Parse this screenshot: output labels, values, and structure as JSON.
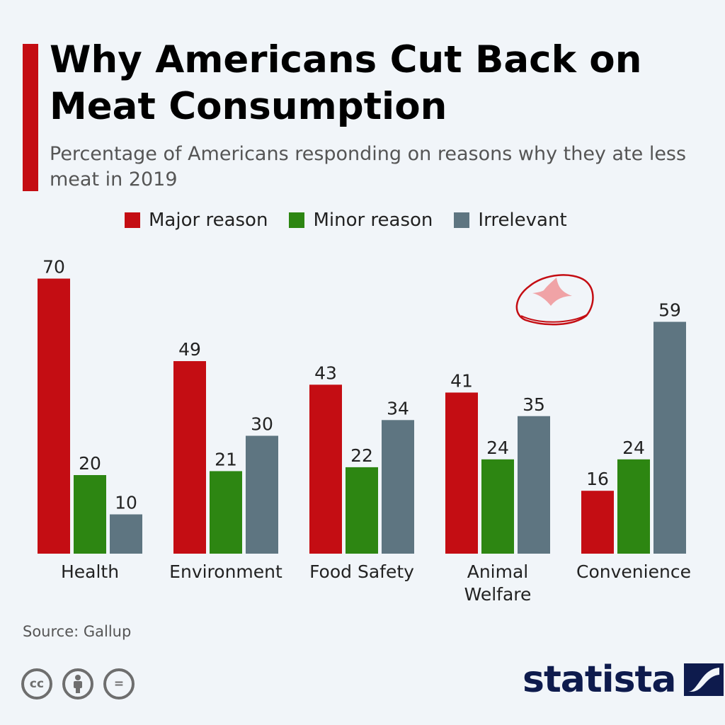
{
  "header": {
    "title": "Why Americans Cut Back on Meat Consumption",
    "subtitle": "Percentage of Americans responding on reasons why they ate less meat in 2019"
  },
  "legend": [
    {
      "label": "Major reason",
      "color": "#c40d13"
    },
    {
      "label": "Minor reason",
      "color": "#2d8612"
    },
    {
      "label": "Irrelevant",
      "color": "#5e7581"
    }
  ],
  "chart_data": {
    "type": "bar",
    "categories": [
      [
        "Health"
      ],
      [
        "Environment"
      ],
      [
        "Food Safety"
      ],
      [
        "Animal",
        "Welfare"
      ],
      [
        "Convenience"
      ]
    ],
    "series": [
      {
        "name": "Major reason",
        "color": "#c40d13",
        "values": [
          70,
          49,
          43,
          41,
          16
        ]
      },
      {
        "name": "Minor reason",
        "color": "#2d8612",
        "values": [
          20,
          21,
          22,
          24,
          24
        ]
      },
      {
        "name": "Irrelevant",
        "color": "#5e7581",
        "values": [
          10,
          30,
          34,
          35,
          59
        ]
      }
    ],
    "title": "Why Americans Cut Back on Meat Consumption",
    "xlabel": "",
    "ylabel": "",
    "ylim": [
      0,
      70
    ],
    "grid": false,
    "legend_position": "top"
  },
  "footer": {
    "source": "Source: Gallup",
    "brand": "statista",
    "cc_icons": [
      "cc-icon",
      "attribution-icon",
      "no-derivatives-icon"
    ],
    "cc_labels": [
      "cc",
      "="
    ]
  }
}
